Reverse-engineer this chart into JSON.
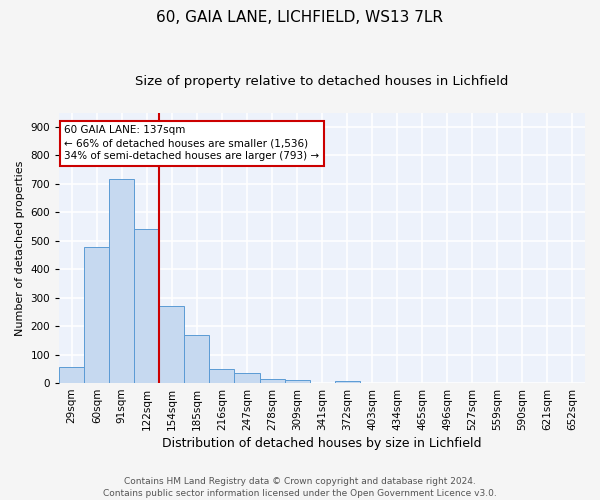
{
  "title1": "60, GAIA LANE, LICHFIELD, WS13 7LR",
  "title2": "Size of property relative to detached houses in Lichfield",
  "xlabel": "Distribution of detached houses by size in Lichfield",
  "ylabel": "Number of detached properties",
  "bar_labels": [
    "29sqm",
    "60sqm",
    "91sqm",
    "122sqm",
    "154sqm",
    "185sqm",
    "216sqm",
    "247sqm",
    "278sqm",
    "309sqm",
    "341sqm",
    "372sqm",
    "403sqm",
    "434sqm",
    "465sqm",
    "496sqm",
    "527sqm",
    "559sqm",
    "590sqm",
    "621sqm",
    "652sqm"
  ],
  "bar_values": [
    55,
    480,
    718,
    540,
    270,
    170,
    50,
    35,
    15,
    12,
    0,
    8,
    0,
    0,
    0,
    0,
    0,
    0,
    0,
    0,
    0
  ],
  "bar_color": "#c6d9f0",
  "bar_edge_color": "#5b9bd5",
  "vline_x_index": 3,
  "vline_color": "#cc0000",
  "annotation_text": "60 GAIA LANE: 137sqm\n← 66% of detached houses are smaller (1,536)\n34% of semi-detached houses are larger (793) →",
  "annotation_box_color": "#ffffff",
  "annotation_box_edge": "#cc0000",
  "ylim": [
    0,
    950
  ],
  "yticks": [
    0,
    100,
    200,
    300,
    400,
    500,
    600,
    700,
    800,
    900
  ],
  "background_color": "#edf2fb",
  "grid_color": "#ffffff",
  "fig_bg_color": "#f5f5f5",
  "footer": "Contains HM Land Registry data © Crown copyright and database right 2024.\nContains public sector information licensed under the Open Government Licence v3.0.",
  "title1_fontsize": 11,
  "title2_fontsize": 9.5,
  "xlabel_fontsize": 9,
  "ylabel_fontsize": 8,
  "tick_fontsize": 7.5,
  "annotation_fontsize": 7.5,
  "footer_fontsize": 6.5
}
